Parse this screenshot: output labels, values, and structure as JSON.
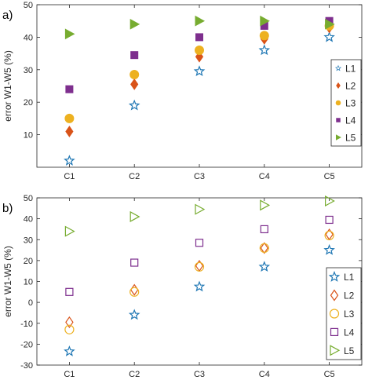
{
  "chart_data": [
    {
      "panel_label": "a)",
      "type": "scatter",
      "ylabel": "error W1-W5 (%)",
      "xlabel": "",
      "categories": [
        "C1",
        "C2",
        "C3",
        "C4",
        "C5"
      ],
      "ylim": [
        0,
        50
      ],
      "yticks": [
        10,
        20,
        30,
        40,
        50
      ],
      "grid": false,
      "legend_position": "right",
      "filled_markers": true,
      "series": [
        {
          "name": "L1",
          "marker": "star",
          "color": "#1f77b4",
          "values": [
            2,
            19,
            29.5,
            36,
            40
          ]
        },
        {
          "name": "L2",
          "marker": "diamond",
          "color": "#d95319",
          "values": [
            11,
            25.5,
            34,
            39.5,
            43
          ]
        },
        {
          "name": "L3",
          "marker": "circle",
          "color": "#edb120",
          "values": [
            15,
            28.5,
            36,
            40.5,
            43.5
          ]
        },
        {
          "name": "L4",
          "marker": "square",
          "color": "#7e2f8e",
          "values": [
            24,
            34.5,
            40,
            43.5,
            45
          ]
        },
        {
          "name": "L5",
          "marker": "triangle-right",
          "color": "#77ac30",
          "values": [
            41,
            44,
            45,
            45,
            44
          ]
        }
      ]
    },
    {
      "panel_label": "b)",
      "type": "scatter",
      "ylabel": "error W1-W5 (%)",
      "xlabel": "",
      "categories": [
        "C1",
        "C2",
        "C3",
        "C4",
        "C5"
      ],
      "ylim": [
        -30,
        50
      ],
      "yticks": [
        -30,
        -20,
        -10,
        0,
        10,
        20,
        30,
        40,
        50
      ],
      "grid": false,
      "legend_position": "right",
      "filled_markers": false,
      "series": [
        {
          "name": "L1",
          "marker": "star",
          "color": "#1f77b4",
          "values": [
            -23.5,
            -6,
            7.5,
            17,
            25
          ]
        },
        {
          "name": "L2",
          "marker": "diamond",
          "color": "#d95319",
          "values": [
            -9.5,
            6,
            17.5,
            26,
            32.5
          ]
        },
        {
          "name": "L3",
          "marker": "circle",
          "color": "#edb120",
          "values": [
            -13,
            5,
            17,
            26,
            32
          ]
        },
        {
          "name": "L4",
          "marker": "square",
          "color": "#7e2f8e",
          "values": [
            5,
            19,
            28.5,
            35,
            39.5
          ]
        },
        {
          "name": "L5",
          "marker": "triangle-right",
          "color": "#77ac30",
          "values": [
            34,
            41,
            44.5,
            46.5,
            48.5
          ]
        }
      ]
    }
  ]
}
